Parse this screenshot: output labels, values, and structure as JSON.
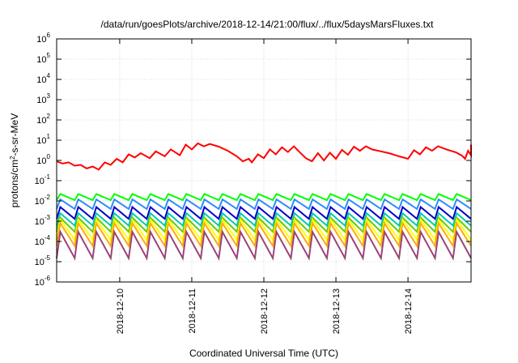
{
  "chart_data": {
    "type": "line",
    "title": "/data/run/goesPlots/archive/2018-12-14/21:00/flux/../flux/5daysMarsFluxes.txt",
    "xlabel": "Coordinated Universal Time (UTC)",
    "ylabel": {
      "base": "protons/cm",
      "sup": "2",
      "rest": "-s-sr-MeV"
    },
    "yscale": "log",
    "ylim": [
      1e-06,
      1000000.0
    ],
    "y_ticks": [
      {
        "value": 1e-06,
        "base": "10",
        "exp": "-6"
      },
      {
        "value": 1e-05,
        "base": "10",
        "exp": "-5"
      },
      {
        "value": 0.0001,
        "base": "10",
        "exp": "-4"
      },
      {
        "value": 0.001,
        "base": "10",
        "exp": "-3"
      },
      {
        "value": 0.01,
        "base": "10",
        "exp": "-2"
      },
      {
        "value": 0.1,
        "base": "10",
        "exp": "-1"
      },
      {
        "value": 1,
        "base": "10",
        "exp": "0"
      },
      {
        "value": 10,
        "base": "10",
        "exp": "1"
      },
      {
        "value": 100,
        "base": "10",
        "exp": "2"
      },
      {
        "value": 1000,
        "base": "10",
        "exp": "3"
      },
      {
        "value": 10000,
        "base": "10",
        "exp": "4"
      },
      {
        "value": 100000,
        "base": "10",
        "exp": "5"
      },
      {
        "value": 1000000,
        "base": "10",
        "exp": "6"
      }
    ],
    "xlim": [
      "2018-12-09T03:00",
      "2018-12-14T21:00"
    ],
    "x_ticks": [
      "2018-12-10",
      "2018-12-11",
      "2018-12-12",
      "2018-12-13",
      "2018-12-14"
    ],
    "grid": true,
    "legend": "none",
    "series": [
      {
        "color": "#ff0000",
        "kind": "smooth",
        "points": [
          [
            "2018-12-09T03:00",
            0.9
          ],
          [
            "2018-12-09T05:00",
            0.7
          ],
          [
            "2018-12-09T07:00",
            0.8
          ],
          [
            "2018-12-09T09:00",
            0.55
          ],
          [
            "2018-12-09T11:00",
            0.6
          ],
          [
            "2018-12-09T13:00",
            0.4
          ],
          [
            "2018-12-09T15:00",
            0.5
          ],
          [
            "2018-12-09T17:00",
            0.35
          ],
          [
            "2018-12-09T19:00",
            0.8
          ],
          [
            "2018-12-09T21:00",
            0.6
          ],
          [
            "2018-12-09T23:00",
            1.2
          ],
          [
            "2018-12-10T01:00",
            0.8
          ],
          [
            "2018-12-10T03:00",
            2.0
          ],
          [
            "2018-12-10T05:00",
            1.4
          ],
          [
            "2018-12-10T07:00",
            2.3
          ],
          [
            "2018-12-10T10:00",
            1.3
          ],
          [
            "2018-12-10T12:00",
            2.8
          ],
          [
            "2018-12-10T15:00",
            1.6
          ],
          [
            "2018-12-10T17:00",
            3.5
          ],
          [
            "2018-12-10T20:00",
            1.8
          ],
          [
            "2018-12-10T22:00",
            6.0
          ],
          [
            "2018-12-11T00:00",
            3.5
          ],
          [
            "2018-12-11T02:00",
            7.0
          ],
          [
            "2018-12-11T04:00",
            5.0
          ],
          [
            "2018-12-11T06:00",
            6.5
          ],
          [
            "2018-12-11T09:00",
            4.8
          ],
          [
            "2018-12-11T12:00",
            3.0
          ],
          [
            "2018-12-11T15:00",
            1.6
          ],
          [
            "2018-12-11T17:00",
            0.9
          ],
          [
            "2018-12-11T19:00",
            1.2
          ],
          [
            "2018-12-11T20:00",
            0.8
          ],
          [
            "2018-12-11T22:00",
            2.0
          ],
          [
            "2018-12-12T00:00",
            1.3
          ],
          [
            "2018-12-12T02:00",
            3.5
          ],
          [
            "2018-12-12T04:00",
            2.0
          ],
          [
            "2018-12-12T06:00",
            4.5
          ],
          [
            "2018-12-12T08:00",
            2.6
          ],
          [
            "2018-12-12T10:00",
            5.0
          ],
          [
            "2018-12-12T12:00",
            2.5
          ],
          [
            "2018-12-12T14:00",
            1.3
          ],
          [
            "2018-12-12T16:00",
            0.9
          ],
          [
            "2018-12-12T18:00",
            2.3
          ],
          [
            "2018-12-12T20:00",
            1.0
          ],
          [
            "2018-12-12T22:00",
            2.4
          ],
          [
            "2018-12-13T00:00",
            1.2
          ],
          [
            "2018-12-13T02:00",
            3.3
          ],
          [
            "2018-12-13T04:00",
            1.9
          ],
          [
            "2018-12-13T06:00",
            4.8
          ],
          [
            "2018-12-13T08:00",
            3.0
          ],
          [
            "2018-12-13T10:00",
            5.0
          ],
          [
            "2018-12-13T12:00",
            3.5
          ],
          [
            "2018-12-13T15:00",
            2.8
          ],
          [
            "2018-12-13T18:00",
            2.2
          ],
          [
            "2018-12-13T21:00",
            1.6
          ],
          [
            "2018-12-14T00:00",
            1.2
          ],
          [
            "2018-12-14T02:00",
            3.2
          ],
          [
            "2018-12-14T04:00",
            2.0
          ],
          [
            "2018-12-14T06:00",
            4.5
          ],
          [
            "2018-12-14T08:00",
            3.0
          ],
          [
            "2018-12-14T10:00",
            5.0
          ],
          [
            "2018-12-14T13:00",
            3.4
          ],
          [
            "2018-12-14T16:00",
            2.5
          ],
          [
            "2018-12-14T18:00",
            1.7
          ],
          [
            "2018-12-14T19:00",
            1.2
          ],
          [
            "2018-12-14T20:00",
            3.0
          ],
          [
            "2018-12-14T21:00",
            1.8
          ],
          [
            "2018-12-14T21:00",
            6.0
          ]
        ]
      },
      {
        "color": "#00ff00",
        "kind": "sawtooth",
        "high": 0.022,
        "low": 0.011,
        "period_hours": 6
      },
      {
        "color": "#2e8bff",
        "kind": "sawtooth",
        "high": 0.012,
        "low": 0.004,
        "period_hours": 6
      },
      {
        "color": "#0000cc",
        "kind": "sawtooth",
        "high": 0.005,
        "low": 0.0013,
        "period_hours": 6
      },
      {
        "color": "#00ccaa",
        "kind": "sawtooth",
        "high": 0.0025,
        "low": 0.0006,
        "period_hours": 6
      },
      {
        "color": "#66cc00",
        "kind": "sawtooth",
        "high": 0.0015,
        "low": 0.0003,
        "period_hours": 6
      },
      {
        "color": "#ffff00",
        "kind": "sawtooth",
        "high": 0.0012,
        "low": 0.00012,
        "period_hours": 6
      },
      {
        "color": "#ffaa00",
        "kind": "sawtooth",
        "high": 0.0008,
        "low": 6e-05,
        "period_hours": 6
      },
      {
        "color": "#994477",
        "kind": "sawtooth",
        "high": 0.0003,
        "low": 1.5e-05,
        "period_hours": 6
      }
    ]
  }
}
